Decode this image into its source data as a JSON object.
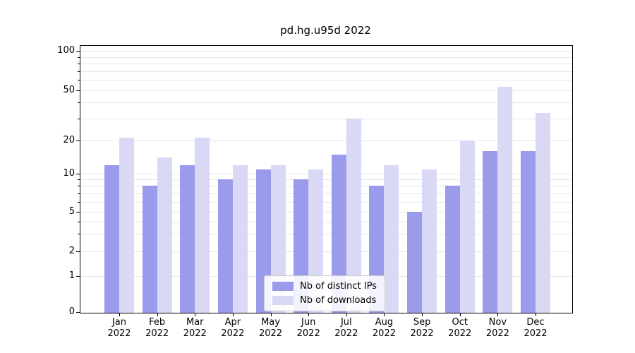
{
  "title": "pd.hg.u95d 2022",
  "chart_data": {
    "type": "bar",
    "title": "pd.hg.u95d 2022",
    "yscale": "symlog",
    "ylim": [
      0,
      100
    ],
    "grid": true,
    "legend_position": "lower center",
    "year": "2022",
    "months": [
      "Jan",
      "Feb",
      "Mar",
      "Apr",
      "May",
      "Jun",
      "Jul",
      "Aug",
      "Sep",
      "Oct",
      "Nov",
      "Dec"
    ],
    "yticks": [
      100,
      50,
      20,
      10,
      5,
      2,
      1,
      0
    ],
    "series": [
      {
        "name": "Nb of distinct IPs",
        "color": "#9b9beb",
        "values": [
          12,
          8,
          12,
          9,
          11,
          9,
          15,
          8,
          5,
          8,
          16,
          16
        ]
      },
      {
        "name": "Nb of downloads",
        "color": "#d9d9f6",
        "values": [
          21,
          14,
          21,
          12,
          12,
          11,
          30,
          12,
          11,
          20,
          53,
          33
        ]
      }
    ]
  }
}
